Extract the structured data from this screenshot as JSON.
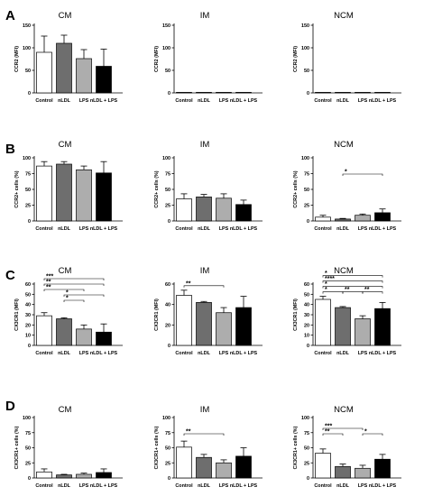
{
  "panel_letters": [
    "A",
    "B",
    "C",
    "D"
  ],
  "chart_data": [
    {
      "type": "bar",
      "panel": "A",
      "title": "CM",
      "ylabel": "CCR2 (MFI)",
      "categories": [
        "Control",
        "nLDL",
        "LPS",
        "nLDL + LPS"
      ],
      "values": [
        90,
        110,
        76,
        59
      ],
      "errors": [
        36,
        18,
        20,
        38
      ],
      "ylim": [
        0,
        150
      ],
      "yticks": [
        0,
        50,
        100,
        150
      ],
      "significance": []
    },
    {
      "type": "bar",
      "panel": "A",
      "title": "IM",
      "ylabel": "CCR2 (MFI)",
      "categories": [
        "Control",
        "nLDL",
        "LPS",
        "nLDL + LPS"
      ],
      "values": [
        0.4,
        0.4,
        0.4,
        0.4
      ],
      "errors": [
        0,
        0,
        0,
        0
      ],
      "ylim": [
        0,
        150
      ],
      "yticks": [
        0,
        50,
        100,
        150
      ],
      "significance": []
    },
    {
      "type": "bar",
      "panel": "A",
      "title": "NCM",
      "ylabel": "CCR2 (MFI)",
      "categories": [
        "Control",
        "nLDL",
        "LPS",
        "nLDL + LPS"
      ],
      "values": [
        0.4,
        0.4,
        0.4,
        0.4
      ],
      "errors": [
        0,
        0,
        0,
        0
      ],
      "ylim": [
        0,
        150
      ],
      "yticks": [
        0,
        50,
        100,
        150
      ],
      "significance": []
    },
    {
      "type": "bar",
      "panel": "B",
      "title": "CM",
      "ylabel": "CCR2+ cells (%)",
      "categories": [
        "Control",
        "nLDL",
        "LPS",
        "nLDL + LPS"
      ],
      "values": [
        87,
        90,
        81,
        76
      ],
      "errors": [
        7,
        4,
        6,
        18
      ],
      "ylim": [
        0,
        100
      ],
      "yticks": [
        0,
        25,
        50,
        75,
        100
      ],
      "significance": []
    },
    {
      "type": "bar",
      "panel": "B",
      "title": "IM",
      "ylabel": "CCR2+ cells (%)",
      "categories": [
        "Control",
        "nLDL",
        "LPS",
        "nLDL + LPS"
      ],
      "values": [
        35,
        38,
        36,
        26
      ],
      "errors": [
        8,
        4,
        7,
        7
      ],
      "ylim": [
        0,
        100
      ],
      "yticks": [
        0,
        25,
        50,
        75,
        100
      ],
      "significance": []
    },
    {
      "type": "bar",
      "panel": "B",
      "title": "NCM",
      "ylabel": "CCR2+ cells (%)",
      "categories": [
        "Control",
        "nLDL",
        "LPS",
        "nLDL + LPS"
      ],
      "values": [
        6,
        3,
        9,
        13
      ],
      "errors": [
        3,
        1,
        2,
        6
      ],
      "ylim": [
        0,
        100
      ],
      "yticks": [
        0,
        25,
        50,
        75,
        100
      ],
      "significance": [
        {
          "from": 1,
          "to": 3,
          "label": "*",
          "level": 0
        }
      ]
    },
    {
      "type": "bar",
      "panel": "C",
      "title": "CM",
      "ylabel": "CX3CR1 (MFI)",
      "categories": [
        "Control",
        "nLDL",
        "LPS",
        "nLDL + LPS"
      ],
      "values": [
        29,
        26,
        16,
        13
      ],
      "errors": [
        3,
        1,
        4,
        8
      ],
      "ylim": [
        0,
        60
      ],
      "yticks": [
        0,
        10,
        20,
        30,
        40,
        50,
        60
      ],
      "significance": [
        {
          "from": 1,
          "to": 2,
          "label": "*",
          "level": 0
        },
        {
          "from": 1,
          "to": 3,
          "label": "*",
          "level": 1
        },
        {
          "from": 0,
          "to": 2,
          "label": "**",
          "level": 2
        },
        {
          "from": 0,
          "to": 3,
          "label": "**",
          "level": 3
        },
        {
          "from": 0,
          "to": 3,
          "label": "***",
          "level": 4
        }
      ]
    },
    {
      "type": "bar",
      "panel": "C",
      "title": "IM",
      "ylabel": "CX3CR1 (MFI)",
      "categories": [
        "Control",
        "nLDL",
        "LPS",
        "nLDL + LPS"
      ],
      "values": [
        49,
        42,
        32,
        37
      ],
      "errors": [
        5,
        1,
        5,
        11
      ],
      "ylim": [
        0,
        60
      ],
      "yticks": [
        0,
        20,
        40,
        60
      ],
      "significance": [
        {
          "from": 0,
          "to": 2,
          "label": "**",
          "level": 0
        }
      ]
    },
    {
      "type": "bar",
      "panel": "C",
      "title": "NCM",
      "ylabel": "CX3CR1 (MFI)",
      "categories": [
        "Control",
        "nLDL",
        "LPS",
        "nLDL + LPS"
      ],
      "values": [
        45,
        37,
        26,
        36
      ],
      "errors": [
        3,
        1,
        3,
        6
      ],
      "ylim": [
        0,
        60
      ],
      "yticks": [
        0,
        10,
        20,
        30,
        40,
        50,
        60
      ],
      "significance": [
        {
          "from": 0,
          "to": 1,
          "label": "*",
          "level": 0
        },
        {
          "from": 1,
          "to": 2,
          "label": "**",
          "level": 0
        },
        {
          "from": 2,
          "to": 3,
          "label": "**",
          "level": 0
        },
        {
          "from": 0,
          "to": 3,
          "label": "*",
          "level": 1
        },
        {
          "from": 0,
          "to": 3,
          "label": "****",
          "level": 2
        },
        {
          "from": 0,
          "to": 3,
          "label": "*",
          "level": 3
        }
      ]
    },
    {
      "type": "bar",
      "panel": "D",
      "title": "CM",
      "ylabel": "CX3CR1+ cells (%)",
      "categories": [
        "Control",
        "nLDL",
        "LPS",
        "nLDL + LPS"
      ],
      "values": [
        10,
        5,
        6,
        9
      ],
      "errors": [
        5,
        1,
        2,
        6
      ],
      "ylim": [
        0,
        100
      ],
      "yticks": [
        0,
        25,
        50,
        75,
        100
      ],
      "significance": []
    },
    {
      "type": "bar",
      "panel": "D",
      "title": "IM",
      "ylabel": "CX3CR1+ cells (%)",
      "categories": [
        "Control",
        "nLDL",
        "LPS",
        "nLDL + LPS"
      ],
      "values": [
        51,
        34,
        25,
        36
      ],
      "errors": [
        10,
        5,
        5,
        14
      ],
      "ylim": [
        0,
        100
      ],
      "yticks": [
        0,
        25,
        50,
        75,
        100
      ],
      "significance": [
        {
          "from": 0,
          "to": 2,
          "label": "**",
          "level": 0
        }
      ]
    },
    {
      "type": "bar",
      "panel": "D",
      "title": "NCM",
      "ylabel": "CX3CR1+ cells (%)",
      "categories": [
        "Control",
        "nLDL",
        "LPS",
        "nLDL + LPS"
      ],
      "values": [
        41,
        19,
        16,
        31
      ],
      "errors": [
        7,
        4,
        5,
        8
      ],
      "ylim": [
        0,
        100
      ],
      "yticks": [
        0,
        25,
        50,
        75,
        100
      ],
      "significance": [
        {
          "from": 0,
          "to": 1,
          "label": "**",
          "level": 0
        },
        {
          "from": 2,
          "to": 3,
          "label": "*",
          "level": 0
        },
        {
          "from": 0,
          "to": 2,
          "label": "***",
          "level": 1
        }
      ]
    }
  ],
  "bar_colors": [
    "#ffffff",
    "#6e6e6e",
    "#adadad",
    "#000000"
  ]
}
